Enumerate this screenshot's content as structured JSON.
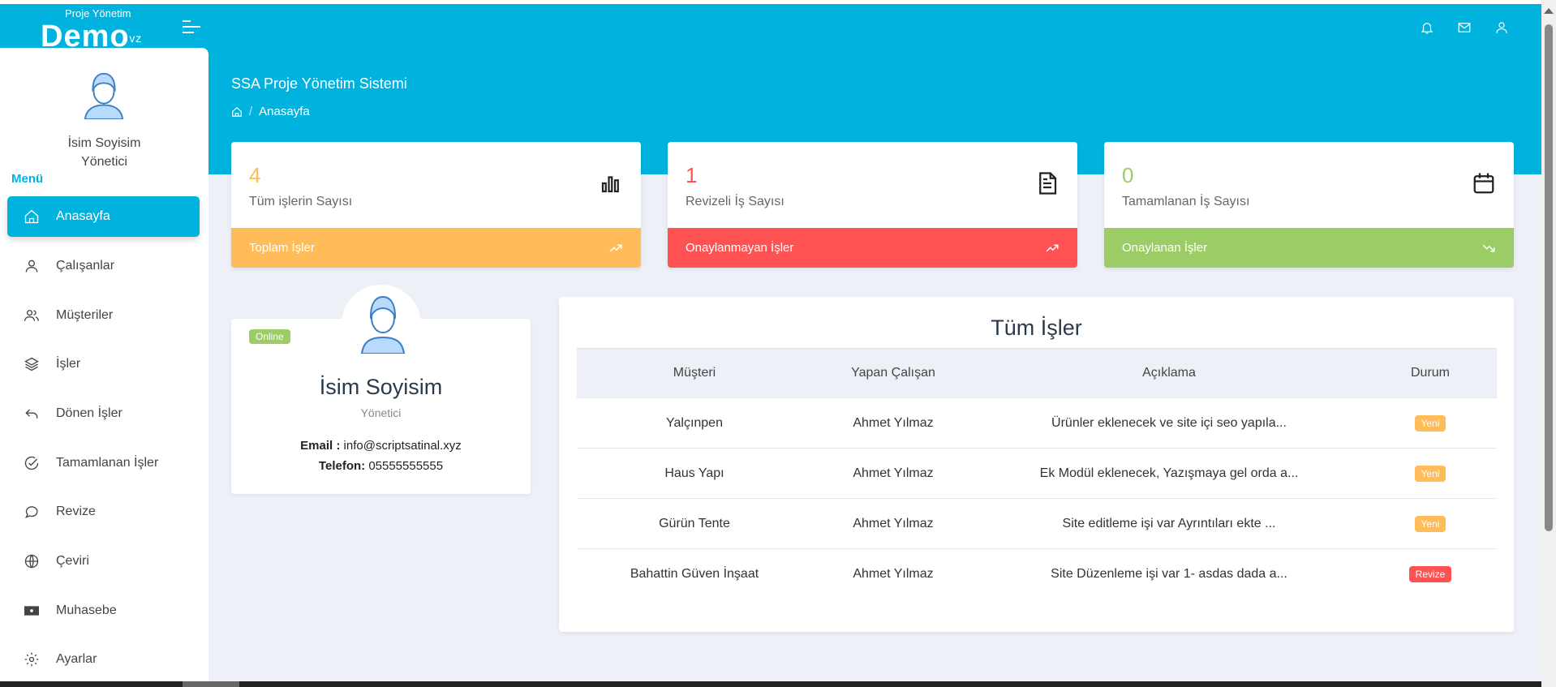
{
  "header": {
    "logo_small": "Proje Yönetim",
    "logo_big": "Demo",
    "page_title": "SSA Proje Yönetim Sistemi",
    "breadcrumb": "Anasayfa",
    "icons": [
      "bell-icon",
      "mail-icon",
      "user-icon"
    ],
    "color": "#00b3de"
  },
  "sidebar": {
    "user_name": "İsim Soyisim",
    "user_role": "Yönetici",
    "menu_label": "Menü",
    "items": [
      {
        "label": "Anasayfa",
        "icon": "home-icon",
        "active": true
      },
      {
        "label": "Çalışanlar",
        "icon": "user-icon"
      },
      {
        "label": "Müşteriler",
        "icon": "users-icon"
      },
      {
        "label": "İşler",
        "icon": "layers-icon"
      },
      {
        "label": "Dönen İşler",
        "icon": "return-icon"
      },
      {
        "label": "Tamamlanan İşler",
        "icon": "check-circle-icon"
      },
      {
        "label": "Revize",
        "icon": "chat-icon"
      },
      {
        "label": "Çeviri",
        "icon": "globe-icon"
      },
      {
        "label": "Muhasebe",
        "icon": "money-icon"
      },
      {
        "label": "Ayarlar",
        "icon": "gear-icon"
      }
    ]
  },
  "stats": [
    {
      "value": "4",
      "label": "Tüm işlerin Sayısı",
      "footer": "Toplam İşler",
      "color": "#ffbc58",
      "icon": "bar-chart-icon",
      "trend": "trend-up-icon"
    },
    {
      "value": "1",
      "label": "Revizeli İş Sayısı",
      "footer": "Onaylanmayan İşler",
      "color": "#ff5252",
      "icon": "document-icon",
      "trend": "trend-up-icon"
    },
    {
      "value": "0",
      "label": "Tamamlanan İş Sayısı",
      "footer": "Onaylanan İşler",
      "color": "#9ccc65",
      "icon": "calendar-icon",
      "trend": "trend-down-icon"
    }
  ],
  "profile": {
    "status": "Online",
    "name": "İsim Soyisim",
    "role": "Yönetici",
    "email_label": "Email :",
    "email": "info@scriptsatinal.xyz",
    "phone_label": "Telefon:",
    "phone": "05555555555"
  },
  "jobs": {
    "title": "Tüm İşler",
    "columns": [
      "Müşteri",
      "Yapan Çalışan",
      "Açıklama",
      "Durum"
    ],
    "rows": [
      {
        "customer": "Yalçınpen",
        "employee": "Ahmet Yılmaz",
        "description": "Ürünler eklenecek ve site içi seo yapıla...",
        "status": "Yeni",
        "status_color": "#ffbc58"
      },
      {
        "customer": "Haus Yapı",
        "employee": "Ahmet Yılmaz",
        "description": "Ek Modül eklenecek, Yazışmaya gel orda a...",
        "status": "Yeni",
        "status_color": "#ffbc58"
      },
      {
        "customer": "Gürün Tente",
        "employee": "Ahmet Yılmaz",
        "description": "Site editleme işi var Ayrıntıları ekte ...",
        "status": "Yeni",
        "status_color": "#ffbc58"
      },
      {
        "customer": "Bahattin Güven İnşaat",
        "employee": "Ahmet Yılmaz",
        "description": "Site Düzenleme işi var 1- asdas dada a...",
        "status": "Revize",
        "status_color": "#ff5252"
      }
    ]
  }
}
